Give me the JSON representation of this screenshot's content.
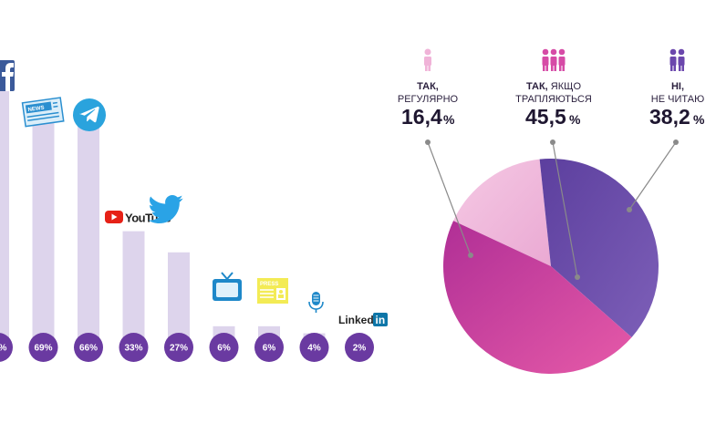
{
  "colors": {
    "bar": "#ddd4ec",
    "badge": "#6a3aa1",
    "pie_regular": "#f0b8dc",
    "pie_sometimes": "#cc3fa0",
    "pie_no": "#6a4ba8",
    "leader": "#8a8a8a",
    "icon_light_pink": "#f0b3d8",
    "icon_pink": "#d64ba6",
    "icon_purple": "#6b47ad"
  },
  "chart_data": [
    {
      "type": "bar",
      "categories": [
        "Facebook",
        "News",
        "Telegram",
        "YouTube",
        "Twitter",
        "TV",
        "Press",
        "Radio",
        "LinkedIn"
      ],
      "values": [
        79,
        69,
        66,
        33,
        27,
        6,
        6,
        4,
        2
      ],
      "labels": [
        "…%",
        "69%",
        "66%",
        "33%",
        "27%",
        "6%",
        "6%",
        "4%",
        "2%"
      ],
      "ylim": [
        0,
        100
      ],
      "grid": false,
      "icons": [
        "facebook-icon",
        "news-icon",
        "telegram-icon",
        "youtube-logo",
        "twitter-icon",
        "tv-icon",
        "press-icon",
        "microphone-icon",
        "linkedin-logo"
      ],
      "youtube_label": "YouTube",
      "linkedin_label_a": "Linked",
      "linkedin_label_b": "in",
      "news_label": "NEWS",
      "press_label": "PRESS"
    },
    {
      "type": "pie",
      "slices": [
        {
          "key": "regular",
          "value": 16.4,
          "label_line1": "ТАК,",
          "label_line2": "РЕГУЛЯРНО",
          "pct_num": "16,4",
          "pct_sign": "%"
        },
        {
          "key": "sometimes",
          "value": 45.5,
          "label_line1": "ТАК,",
          "label_line1_rest": " ЯКЩО",
          "label_line2": "ТРАПЛЯЮТЬСЯ",
          "pct_num": "45,5",
          "pct_sign": "%"
        },
        {
          "key": "no",
          "value": 38.2,
          "label_line1": "НІ,",
          "label_line2": "НЕ ЧИТАЮ",
          "pct_num": "38,2",
          "pct_sign": "%"
        }
      ]
    }
  ]
}
